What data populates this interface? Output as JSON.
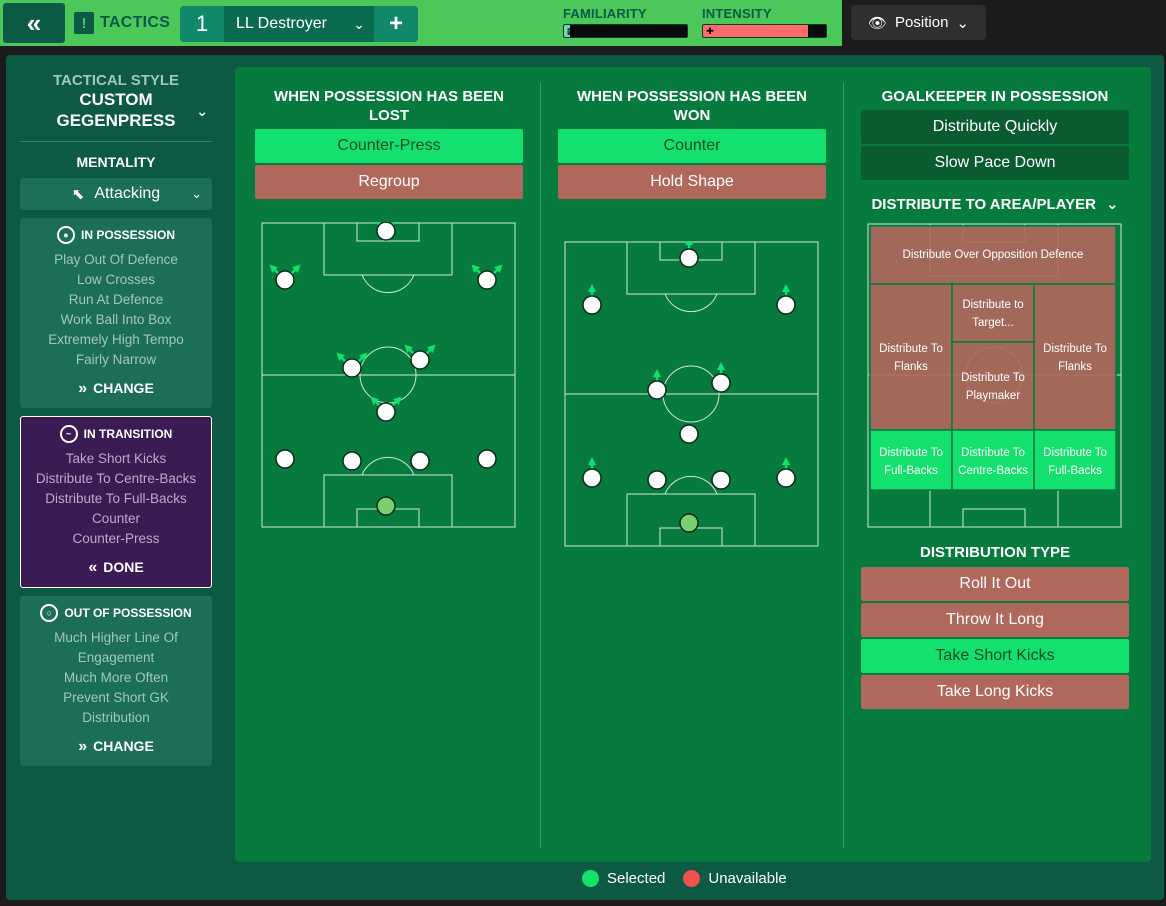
{
  "topbar": {
    "back_icon": "double-chevron-left-icon",
    "tactics_label": "TACTICS",
    "tactic_slot": "1",
    "tactic_name": "LL Destroyer",
    "familiarity_label": "FAMILIARITY",
    "familiarity_level": 0.05,
    "intensity_label": "INTENSITY",
    "intensity_level": 0.85,
    "position_label": "Position"
  },
  "sidebar": {
    "tactical_style_label": "TACTICAL STYLE",
    "tactical_style_line1": "CUSTOM",
    "tactical_style_line2": "GEGENPRESS",
    "mentality_label": "MENTALITY",
    "mentality_value": "Attacking",
    "in_possession": {
      "title": "IN POSSESSION",
      "items": [
        "Play Out Of Defence",
        "Low Crosses",
        "Run At Defence",
        "Work Ball Into Box",
        "Extremely High Tempo",
        "Fairly Narrow"
      ],
      "action": "CHANGE"
    },
    "in_transition": {
      "title": "IN TRANSITION",
      "items": [
        "Take Short Kicks",
        "Distribute To Centre-Backs",
        "Distribute To Full-Backs",
        "Counter",
        "Counter-Press"
      ],
      "action": "DONE"
    },
    "out_of_possession": {
      "title": "OUT OF POSSESSION",
      "items": [
        "Much Higher Line Of",
        "Engagement",
        "Much More Often",
        "Prevent Short GK",
        "Distribution"
      ],
      "action": "CHANGE"
    }
  },
  "lost": {
    "title": "WHEN POSSESSION HAS BEEN LOST",
    "options": [
      {
        "label": "Counter-Press",
        "state": "selected"
      },
      {
        "label": "Regroup",
        "state": "unavailable"
      }
    ]
  },
  "won": {
    "title_line1": "WHEN POSSESSION HAS BEEN",
    "title_line2": "WON",
    "options": [
      {
        "label": "Counter",
        "state": "selected"
      },
      {
        "label": "Hold Shape",
        "state": "unavailable"
      }
    ]
  },
  "goalkeeper": {
    "title": "GOALKEEPER IN POSSESSION",
    "options": [
      "Distribute Quickly",
      "Slow Pace Down"
    ],
    "distribute_title": "DISTRIBUTE TO AREA/PLAYER",
    "zones": {
      "over_defence": "Distribute Over Opposition Defence",
      "target_1": "Distribute to",
      "target_2": "Target...",
      "flanks_1": "Distribute To",
      "flanks_2": "Flanks",
      "playmaker_1": "Distribute To",
      "playmaker_2": "Playmaker",
      "fullbacks_1": "Distribute To",
      "fullbacks_2": "Full-Backs",
      "centrebacks_1": "Distribute To",
      "centrebacks_2": "Centre-Backs"
    },
    "distribution_type_title": "DISTRIBUTION TYPE",
    "distribution_types": [
      {
        "label": "Roll It Out",
        "state": "unavailable"
      },
      {
        "label": "Throw It Long",
        "state": "unavailable"
      },
      {
        "label": "Take Short Kicks",
        "state": "selected"
      },
      {
        "label": "Take Long Kicks",
        "state": "unavailable"
      }
    ]
  },
  "legend": {
    "selected": "Selected",
    "unavailable": "Unavailable"
  },
  "colors": {
    "selected": "#14e06e",
    "unavailable": "#f05050",
    "option_unavailable": "#b0675c",
    "pitch": "#077a3e"
  }
}
